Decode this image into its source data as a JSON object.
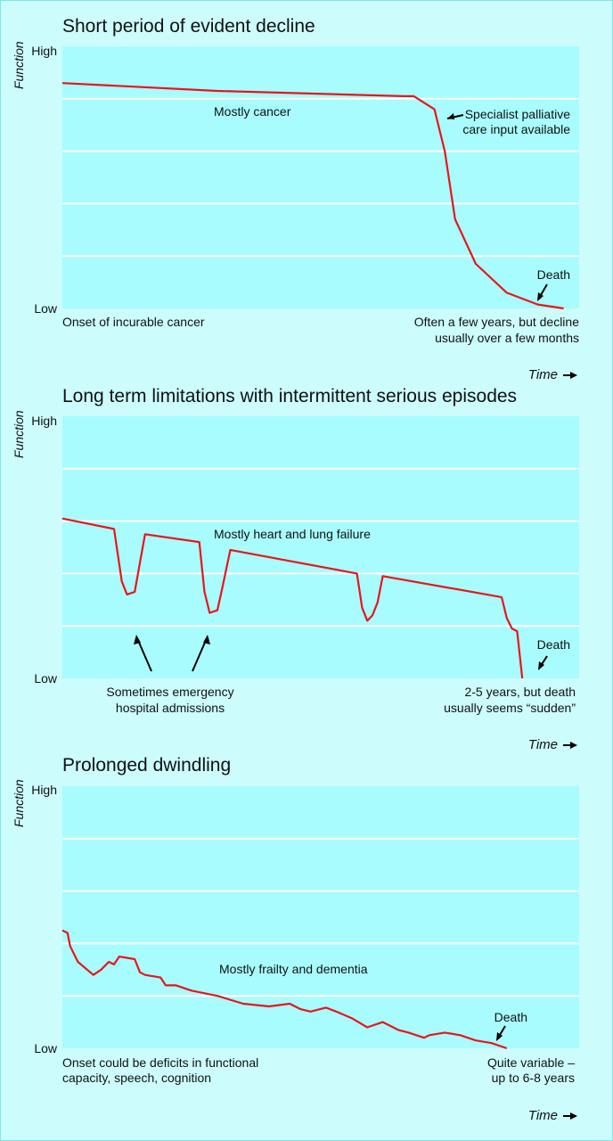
{
  "chart_data": [
    {
      "type": "line",
      "title": "Short period of evident decline",
      "ylabel": "Function",
      "xlabel": "Time",
      "ytick_high": "High",
      "ytick_low": "Low",
      "ylim": [
        0,
        1
      ],
      "xlim": [
        0,
        1
      ],
      "grid": true,
      "series": [
        {
          "values_x": [
            0,
            0.3,
            0.66,
            0.68,
            0.72,
            0.74,
            0.76,
            0.8,
            0.86,
            0.92,
            0.97
          ],
          "values_y": [
            0.86,
            0.83,
            0.81,
            0.81,
            0.76,
            0.6,
            0.34,
            0.17,
            0.06,
            0.015,
            0.0
          ]
        }
      ],
      "annotations": {
        "inside": "Mostly cancer",
        "palliative": [
          "Specialist palliative",
          "care input available"
        ],
        "death": "Death",
        "onset": "Onset of incurable cancer",
        "duration": [
          "Often a few years, but decline",
          "usually over a few months"
        ]
      }
    },
    {
      "type": "line",
      "title": "Long term limitations with intermittent serious episodes",
      "ylabel": "Function",
      "xlabel": "Time",
      "ytick_high": "High",
      "ytick_low": "Low",
      "ylim": [
        0,
        1
      ],
      "xlim": [
        0,
        1
      ],
      "grid": true,
      "series": [
        {
          "values_x": [
            0,
            0.1,
            0.115,
            0.125,
            0.14,
            0.15,
            0.16,
            0.265,
            0.275,
            0.285,
            0.3,
            0.31,
            0.325,
            0.57,
            0.58,
            0.59,
            0.6,
            0.61,
            0.62,
            0.85,
            0.86,
            0.87,
            0.88,
            0.89
          ],
          "values_y": [
            0.61,
            0.57,
            0.37,
            0.32,
            0.33,
            0.44,
            0.55,
            0.52,
            0.33,
            0.25,
            0.26,
            0.35,
            0.49,
            0.4,
            0.27,
            0.22,
            0.24,
            0.29,
            0.39,
            0.31,
            0.23,
            0.19,
            0.18,
            0.0
          ]
        }
      ],
      "annotations": {
        "inside": "Mostly heart and lung failure",
        "death": "Death",
        "admissions": [
          "Sometimes emergency",
          "hospital admissions"
        ],
        "duration": [
          "2-5 years, but death",
          "usually seems “sudden”"
        ]
      }
    },
    {
      "type": "line",
      "title": "Prolonged dwindling",
      "ylabel": "Function",
      "xlabel": "Time",
      "ytick_high": "High",
      "ytick_low": "Low",
      "ylim": [
        0,
        1
      ],
      "xlim": [
        0,
        1
      ],
      "grid": true,
      "series": [
        {
          "values_x": [
            0,
            0.01,
            0.015,
            0.03,
            0.06,
            0.075,
            0.09,
            0.1,
            0.11,
            0.14,
            0.15,
            0.16,
            0.19,
            0.2,
            0.22,
            0.25,
            0.3,
            0.35,
            0.4,
            0.44,
            0.46,
            0.48,
            0.51,
            0.53,
            0.56,
            0.59,
            0.62,
            0.65,
            0.67,
            0.7,
            0.71,
            0.74,
            0.77,
            0.8,
            0.83,
            0.86
          ],
          "values_y": [
            0.45,
            0.44,
            0.39,
            0.33,
            0.28,
            0.3,
            0.33,
            0.32,
            0.35,
            0.34,
            0.29,
            0.28,
            0.27,
            0.24,
            0.24,
            0.22,
            0.2,
            0.17,
            0.16,
            0.17,
            0.15,
            0.14,
            0.155,
            0.14,
            0.115,
            0.08,
            0.1,
            0.07,
            0.06,
            0.04,
            0.05,
            0.06,
            0.05,
            0.03,
            0.02,
            0.0
          ]
        }
      ],
      "annotations": {
        "inside": "Mostly frailty and dementia",
        "death": "Death",
        "onset": [
          "Onset could be deficits in functional",
          "capacity, speech, cognition"
        ],
        "duration": [
          "Quite variable –",
          "up to 6-8 years"
        ]
      }
    }
  ],
  "colors": {
    "panel": "#ccfcfc",
    "plot": "#a8fcfd",
    "grid": "#ffffff",
    "curve": "#e8151b"
  }
}
